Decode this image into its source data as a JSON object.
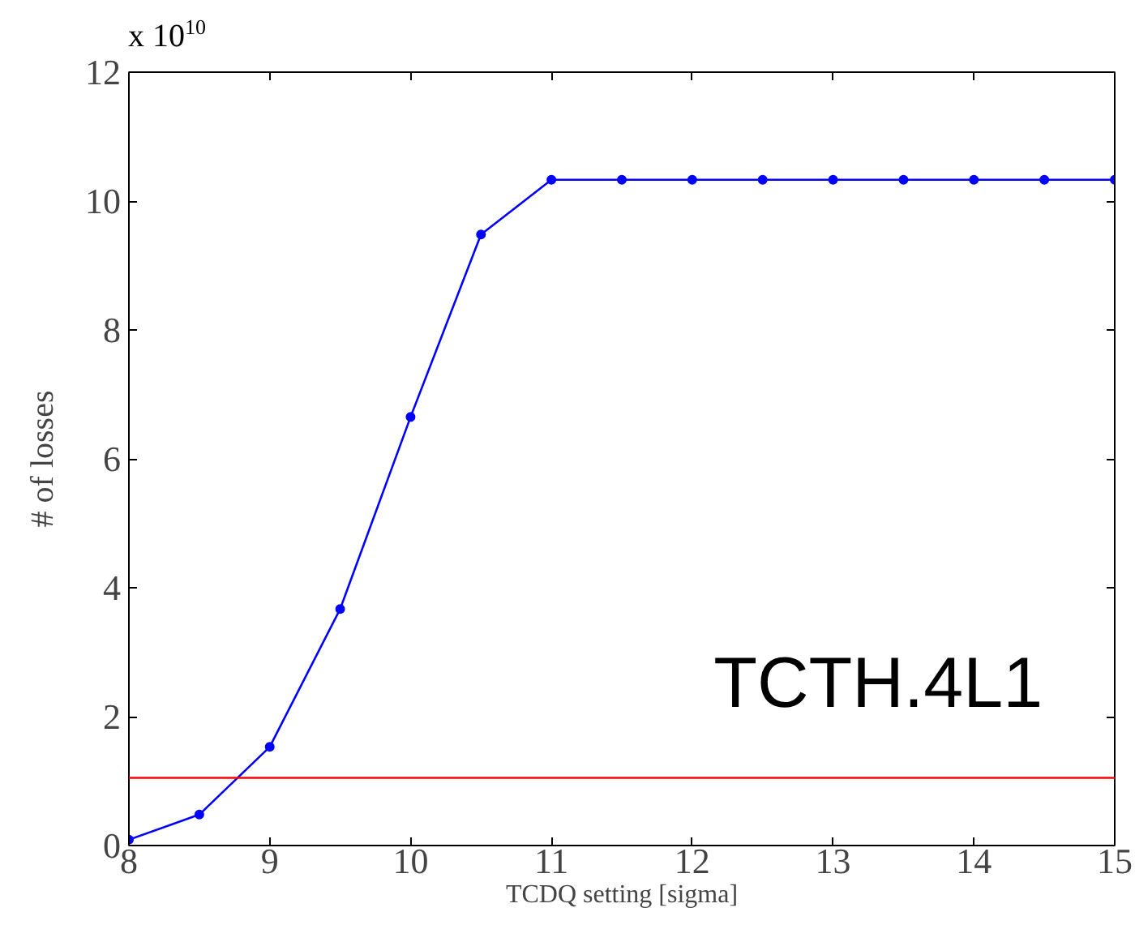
{
  "chart_data": {
    "type": "line",
    "xlabel": "TCDQ setting [sigma]",
    "ylabel": "# of losses",
    "x": [
      8,
      8.5,
      9,
      9.5,
      10,
      10.5,
      11,
      11.5,
      12,
      12.5,
      13,
      13.5,
      14,
      14.5,
      15
    ],
    "series": [
      {
        "color": "#0000ff",
        "values": [
          0.09,
          0.48,
          1.53,
          3.67,
          6.65,
          9.48,
          10.33,
          10.33,
          10.33,
          10.33,
          10.33,
          10.33,
          10.33,
          10.33,
          10.33
        ]
      }
    ],
    "marker": "circle",
    "line_style": "solid",
    "grid": false,
    "legend": false,
    "xlim": [
      8,
      15
    ],
    "xticks": [
      8,
      9,
      10,
      11,
      12,
      13,
      14,
      15
    ],
    "ylim": [
      0,
      12
    ],
    "yticks": [
      0,
      2,
      4,
      6,
      8,
      10,
      12
    ],
    "ref_lines": [
      {
        "axis": "y",
        "value": 1.05,
        "color": "#ff0000"
      }
    ],
    "annotations": [
      "x 10$^{10}$",
      "TCTH.4L1"
    ]
  }
}
